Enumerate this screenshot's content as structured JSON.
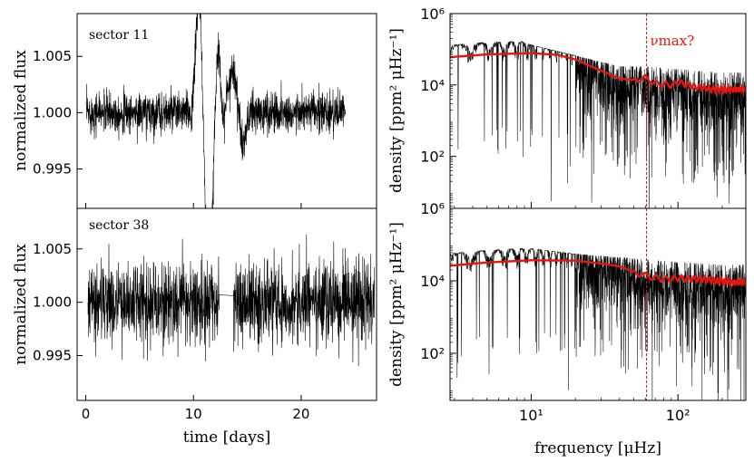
{
  "colors": {
    "trace": "#000000",
    "smooth": "#e8150f",
    "numax": "#e8150f",
    "axis": "#000000"
  },
  "labels": {
    "sector_11": "sector 11",
    "sector_38": "sector 38",
    "numax": "νmax?"
  },
  "chart_data": [
    {
      "id": "lc-sector-11",
      "type": "line",
      "title": "sector 11",
      "xlabel": "",
      "ylabel": "normalized flux",
      "xlim": [
        -0.8,
        27
      ],
      "ylim": [
        0.9915,
        1.0088
      ],
      "xticks": [
        0,
        10,
        20
      ],
      "yticks": [
        0.995,
        1.0,
        1.005
      ],
      "ytick_labels": [
        "0.995",
        "1.000",
        "1.005"
      ],
      "series": [
        {
          "name": "light curve",
          "start": 0.05,
          "end": 24.1,
          "baseline": 1.0,
          "noise": 0.0009,
          "gap": [],
          "features": [
            {
              "kind": "sine",
              "t0": 9.8,
              "t1": 12.7,
              "amp": 0.013,
              "period": 2.2
            },
            {
              "kind": "bump",
              "t0": 12.9,
              "t1": 14.5,
              "amp": 0.0038
            },
            {
              "kind": "dip",
              "t0": 13.8,
              "t1": 15.2,
              "amp": -0.0028
            }
          ]
        }
      ]
    },
    {
      "id": "lc-sector-38",
      "type": "line",
      "title": "sector 38",
      "xlabel": "time [days]",
      "ylabel": "normalized flux",
      "xlim": [
        -0.8,
        27
      ],
      "ylim": [
        0.9908,
        1.0088
      ],
      "xticks": [
        0,
        10,
        20
      ],
      "xtick_labels": [
        "0",
        "10",
        "20"
      ],
      "yticks": [
        0.995,
        1.0,
        1.005
      ],
      "ytick_labels": [
        "0.995",
        "1.000",
        "1.005"
      ],
      "series": [
        {
          "name": "light curve",
          "start": 0.2,
          "end": 26.8,
          "baseline": 1.0,
          "noise": 0.0019,
          "gap": [
            12.4,
            13.7
          ],
          "features": []
        }
      ]
    },
    {
      "id": "psd-sector-11",
      "type": "line",
      "xscale": "log",
      "yscale": "log",
      "xlabel": "",
      "ylabel": "density [ppm² μHz⁻¹]",
      "xlim": [
        2.8,
        290
      ],
      "ylim": [
        3.5,
        1000000
      ],
      "yticks": [
        100,
        10000,
        1000000
      ],
      "ytick_labels": [
        "10²",
        "10⁴",
        "10⁶"
      ],
      "numax": 61,
      "series": [
        {
          "name": "power spectrum",
          "smooth": [
            [
              2.8,
              60000
            ],
            [
              5,
              72000
            ],
            [
              10,
              78000
            ],
            [
              15,
              70000
            ],
            [
              20,
              52000
            ],
            [
              30,
              25000
            ],
            [
              40,
              15000
            ],
            [
              50,
              14000
            ],
            [
              60,
              16000
            ],
            [
              70,
              11000
            ],
            [
              90,
              10000
            ],
            [
              100,
              12000
            ],
            [
              130,
              9000
            ],
            [
              160,
              8000
            ],
            [
              200,
              7500
            ],
            [
              250,
              7500
            ],
            [
              290,
              8000
            ]
          ],
          "raw_envelope": [
            [
              2.8,
              120000
            ],
            [
              4,
              320000
            ],
            [
              6,
              250000
            ],
            [
              10,
              120000
            ],
            [
              20,
              60000
            ],
            [
              40,
              30000
            ],
            [
              60,
              30000
            ],
            [
              100,
              25000
            ],
            [
              200,
              20000
            ],
            [
              290,
              20000
            ]
          ]
        },
        {
          "name": "smoothed",
          "x": [
            2.8,
            5,
            10,
            15,
            20,
            30,
            40,
            50,
            60,
            70,
            90,
            100,
            130,
            160,
            200,
            250,
            290
          ],
          "y": [
            60000,
            72000,
            78000,
            70000,
            52000,
            25000,
            15000,
            14000,
            16000,
            11000,
            10000,
            12000,
            9000,
            8000,
            7500,
            7500,
            8000
          ]
        }
      ]
    },
    {
      "id": "psd-sector-38",
      "type": "line",
      "xscale": "log",
      "yscale": "log",
      "xlabel": "frequency [μHz]",
      "ylabel": "density [ppm² μHz⁻¹]",
      "xlim": [
        2.8,
        290
      ],
      "ylim": [
        5,
        1000000
      ],
      "xticks": [
        10,
        100
      ],
      "xtick_labels": [
        "10¹",
        "10²"
      ],
      "yticks": [
        100,
        10000,
        1000000
      ],
      "ytick_labels": [
        "10²",
        "10⁴",
        "10⁶"
      ],
      "numax": 61,
      "series": [
        {
          "name": "power spectrum",
          "smooth": [
            [
              2.8,
              26000
            ],
            [
              5,
              32000
            ],
            [
              10,
              37000
            ],
            [
              20,
              36000
            ],
            [
              30,
              30000
            ],
            [
              40,
              25000
            ],
            [
              50,
              18000
            ],
            [
              60,
              14000
            ],
            [
              80,
              11000
            ],
            [
              100,
              12000
            ],
            [
              150,
              11000
            ],
            [
              200,
              10000
            ],
            [
              250,
              9000
            ],
            [
              290,
              10000
            ]
          ],
          "raw_envelope": [
            [
              2.8,
              60000
            ],
            [
              5,
              90000
            ],
            [
              10,
              70000
            ],
            [
              20,
              50000
            ],
            [
              40,
              40000
            ],
            [
              60,
              35000
            ],
            [
              100,
              30000
            ],
            [
              200,
              25000
            ],
            [
              290,
              25000
            ]
          ]
        },
        {
          "name": "smoothed",
          "x": [
            2.8,
            5,
            10,
            20,
            30,
            40,
            50,
            60,
            80,
            100,
            150,
            200,
            250,
            290
          ],
          "y": [
            26000,
            32000,
            37000,
            36000,
            30000,
            25000,
            18000,
            14000,
            11000,
            12000,
            11000,
            10000,
            9000,
            10000
          ]
        }
      ]
    }
  ]
}
